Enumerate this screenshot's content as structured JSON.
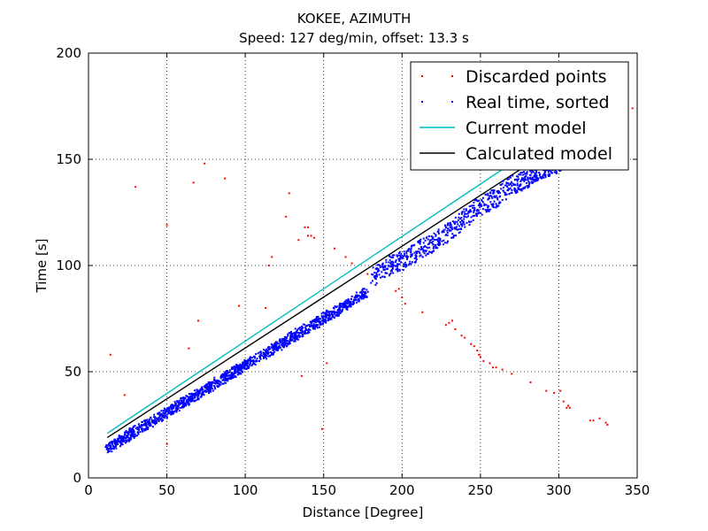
{
  "chart_data": {
    "type": "scatter",
    "title": "KOKEE, AZIMUTH",
    "subtitle": "Speed: 127 deg/min, offset: 13.3 s",
    "xlabel": "Distance [Degree]",
    "ylabel": "Time [s]",
    "xlim": [
      0,
      350
    ],
    "ylim": [
      0,
      200
    ],
    "xticks": [
      "0",
      "50",
      "100",
      "150",
      "200",
      "250",
      "300",
      "350"
    ],
    "yticks": [
      "0",
      "50",
      "100",
      "150",
      "200"
    ],
    "grid": true,
    "legend_position": "top-right",
    "series": [
      {
        "name": "Discarded points",
        "kind": "points",
        "color": "#ff0000",
        "points": [
          [
            14,
            58
          ],
          [
            23,
            39
          ],
          [
            30,
            137
          ],
          [
            50,
            119
          ],
          [
            50,
            16
          ],
          [
            64,
            61
          ],
          [
            67,
            139
          ],
          [
            70,
            74
          ],
          [
            74,
            148
          ],
          [
            87,
            141
          ],
          [
            96,
            81
          ],
          [
            113,
            80
          ],
          [
            115,
            100
          ],
          [
            117,
            104
          ],
          [
            126,
            123
          ],
          [
            128,
            134
          ],
          [
            134,
            112
          ],
          [
            136,
            48
          ],
          [
            138,
            118
          ],
          [
            140,
            118
          ],
          [
            140,
            114
          ],
          [
            142,
            114
          ],
          [
            144,
            113
          ],
          [
            149,
            23
          ],
          [
            152,
            54
          ],
          [
            157,
            108
          ],
          [
            164,
            104
          ],
          [
            168,
            101
          ],
          [
            178,
            96
          ],
          [
            196,
            88
          ],
          [
            198,
            89
          ],
          [
            200,
            85
          ],
          [
            202,
            82
          ],
          [
            213,
            78
          ],
          [
            228,
            72
          ],
          [
            230,
            73
          ],
          [
            232,
            74
          ],
          [
            234,
            70
          ],
          [
            238,
            67
          ],
          [
            240,
            66
          ],
          [
            244,
            63
          ],
          [
            246,
            62
          ],
          [
            248,
            60
          ],
          [
            249,
            58
          ],
          [
            250,
            57
          ],
          [
            252,
            55
          ],
          [
            256,
            54
          ],
          [
            258,
            52
          ],
          [
            260,
            52
          ],
          [
            264,
            51
          ],
          [
            270,
            49
          ],
          [
            282,
            45
          ],
          [
            292,
            41
          ],
          [
            297,
            40
          ],
          [
            301,
            41
          ],
          [
            303,
            36
          ],
          [
            305,
            33
          ],
          [
            306,
            34
          ],
          [
            307,
            33
          ],
          [
            320,
            27
          ],
          [
            322,
            27
          ],
          [
            326,
            28
          ],
          [
            330,
            26
          ],
          [
            331,
            25
          ],
          [
            347,
            174
          ]
        ]
      },
      {
        "name": "Real time, sorted",
        "kind": "band",
        "color": "#0000ff",
        "from": [
          12,
          14
        ],
        "to": [
          177,
          87
        ],
        "tail": [
          [
            181,
            94
          ],
          [
            192,
            100
          ],
          [
            200,
            102
          ],
          [
            210,
            107
          ],
          [
            220,
            110
          ],
          [
            230,
            116
          ],
          [
            240,
            122
          ],
          [
            250,
            128
          ],
          [
            260,
            132
          ],
          [
            270,
            138
          ],
          [
            278,
            140
          ],
          [
            285,
            144
          ],
          [
            291,
            146
          ],
          [
            298,
            147
          ],
          [
            302,
            150
          ]
        ],
        "count": 1400
      },
      {
        "name": "Current model",
        "kind": "line",
        "color": "#00bfbf",
        "x": [
          12,
          300
        ],
        "y": [
          21,
          163
        ]
      },
      {
        "name": "Calculated model",
        "kind": "line",
        "color": "#000000",
        "x": [
          12,
          300
        ],
        "y": [
          19,
          157
        ]
      }
    ]
  }
}
